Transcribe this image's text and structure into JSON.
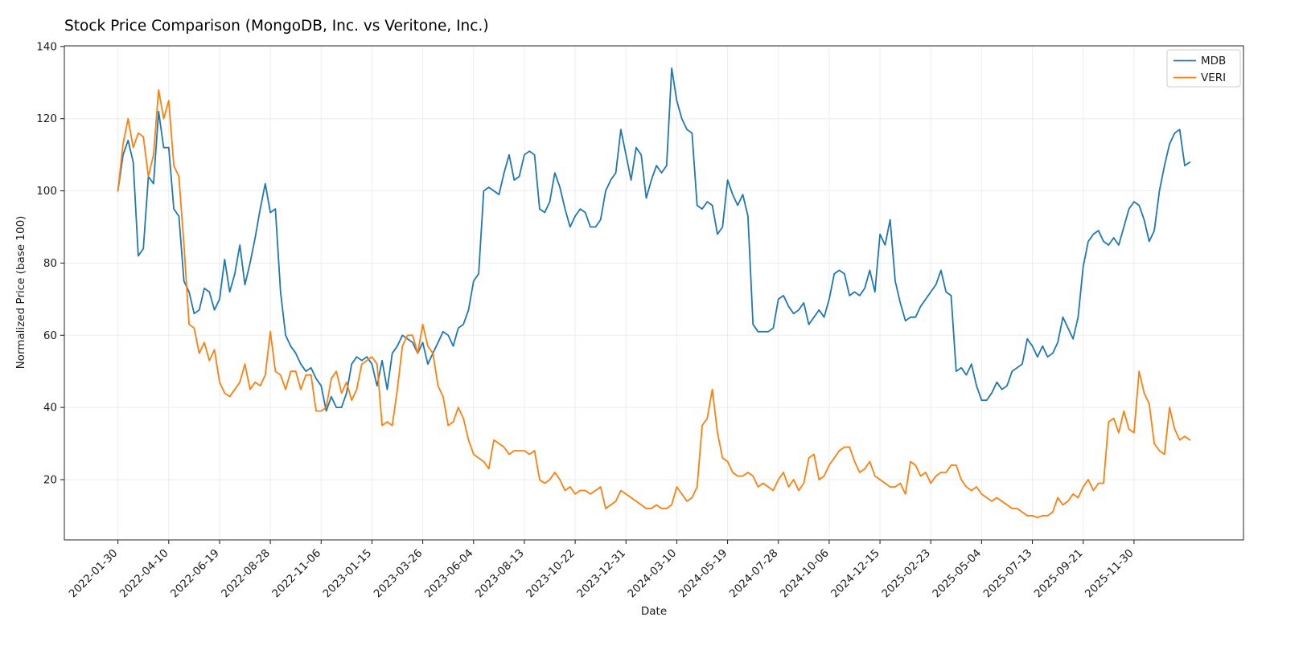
{
  "chart_data": {
    "type": "line",
    "title": "Stock Price Comparison (MongoDB, Inc. vs Veritone, Inc.)",
    "xlabel": "Date",
    "ylabel": "Normalized Price (base 100)",
    "grid": true,
    "legend_position": "upper right",
    "x_start_date": "2022-01-30",
    "x_step": "weekly",
    "x_tick_weeks": [
      0,
      10,
      20,
      30,
      40,
      50,
      60,
      70,
      80,
      90,
      100,
      110,
      120,
      130,
      140,
      150,
      160,
      170,
      180,
      190,
      200
    ],
    "x_tick_labels": [
      "2022-01-30",
      "2022-04-10",
      "2022-06-19",
      "2022-08-28",
      "2022-11-06",
      "2023-01-15",
      "2023-03-26",
      "2023-06-04",
      "2023-08-13",
      "2023-10-22",
      "2023-12-31",
      "2024-03-10",
      "2024-05-19",
      "2024-07-28",
      "2024-10-06",
      "2024-12-15",
      "2025-02-23",
      "2025-05-04",
      "2025-07-13",
      "2025-09-21",
      "2025-11-30"
    ],
    "y_ticks": [
      20,
      40,
      60,
      80,
      100,
      120,
      140
    ],
    "ylim": [
      3.3,
      140.2
    ],
    "xlim_weeks": [
      -10.55,
      221.55
    ],
    "series": [
      {
        "name": "MDB",
        "color": "#1f77b4",
        "values": [
          100,
          110,
          114,
          108,
          82,
          84,
          104,
          102,
          122,
          112,
          112,
          95,
          93,
          75,
          72,
          66,
          67,
          73,
          72,
          67,
          70,
          81,
          72,
          77,
          85,
          74,
          80,
          87,
          95,
          102,
          94,
          95,
          72,
          60,
          57,
          55,
          52,
          50,
          51,
          48,
          46,
          39,
          43,
          40,
          40,
          44,
          52,
          54,
          53,
          54,
          52,
          46,
          53,
          45,
          55,
          57,
          60,
          59,
          58,
          55,
          58,
          52,
          55,
          58,
          61,
          60,
          57,
          62,
          63,
          67,
          75,
          77,
          100,
          101,
          100,
          99,
          105,
          110,
          103,
          104,
          110,
          111,
          110,
          95,
          94,
          97,
          105,
          101,
          95,
          90,
          93,
          95,
          94,
          90,
          90,
          92,
          100,
          103,
          105,
          117,
          110,
          103,
          112,
          110,
          98,
          103,
          107,
          105,
          107,
          134,
          125,
          120,
          117,
          116,
          96,
          95,
          97,
          96,
          88,
          90,
          103,
          99,
          96,
          99,
          93,
          63,
          61,
          61,
          61,
          62,
          70,
          71,
          68,
          66,
          67,
          69,
          63,
          65,
          67,
          65,
          70,
          77,
          78,
          77,
          71,
          72,
          71,
          73,
          78,
          72,
          88,
          85,
          92,
          75,
          69,
          64,
          65,
          65,
          68,
          70,
          72,
          74,
          78,
          72,
          71,
          50,
          51,
          49,
          52,
          46,
          42,
          42,
          44,
          47,
          45,
          46,
          50,
          51,
          52,
          59,
          57,
          54,
          57,
          54,
          55,
          58,
          65,
          62,
          59,
          65,
          79,
          86,
          88,
          89,
          86,
          85,
          87,
          85,
          90,
          95,
          97,
          96,
          92,
          86,
          89,
          100,
          107,
          113,
          116,
          117,
          107,
          108
        ]
      },
      {
        "name": "VERI",
        "color": "#ff7f0e",
        "values": [
          100,
          113,
          120,
          112,
          116,
          115,
          104,
          110,
          128,
          120,
          125,
          107,
          104,
          85,
          63,
          62,
          55,
          58,
          53,
          56,
          47,
          44,
          43,
          45,
          47,
          52,
          45,
          47,
          46,
          49,
          61,
          50,
          49,
          45,
          50,
          50,
          45,
          49,
          49,
          39,
          39,
          40,
          48,
          50,
          44,
          47,
          42,
          45,
          52,
          53,
          54,
          52,
          35,
          36,
          35,
          45,
          57,
          60,
          60,
          55,
          63,
          57,
          55,
          46,
          43,
          35,
          36,
          40,
          37,
          31,
          27,
          26,
          25,
          23,
          31,
          30,
          29,
          27,
          28,
          28,
          28,
          27,
          28,
          20,
          19,
          20,
          22,
          20,
          17,
          18,
          16,
          17,
          17,
          16,
          17,
          18,
          12,
          13,
          14,
          17,
          16,
          15,
          14,
          13,
          12,
          12,
          13,
          12,
          12,
          13,
          18,
          16,
          14,
          15,
          18,
          35,
          37,
          45,
          33,
          26,
          25,
          22,
          21,
          21,
          22,
          21,
          18,
          19,
          18,
          17,
          20,
          22,
          18,
          20,
          17,
          19,
          26,
          27,
          20,
          21,
          24,
          26,
          28,
          29,
          29,
          25,
          22,
          23,
          25,
          21,
          20,
          19,
          18,
          18,
          19,
          16,
          25,
          24,
          21,
          22,
          19,
          21,
          22,
          22,
          24,
          24,
          20,
          18,
          17,
          18,
          16,
          15,
          14,
          15,
          14,
          13,
          12,
          12,
          11,
          10,
          10,
          9.5,
          10,
          10,
          11,
          15,
          13,
          14,
          16,
          15,
          18,
          20,
          17,
          19,
          19,
          36,
          37,
          33,
          39,
          34,
          33,
          50,
          44,
          41,
          30,
          28,
          27,
          40,
          34,
          31,
          32,
          31
        ]
      }
    ]
  }
}
